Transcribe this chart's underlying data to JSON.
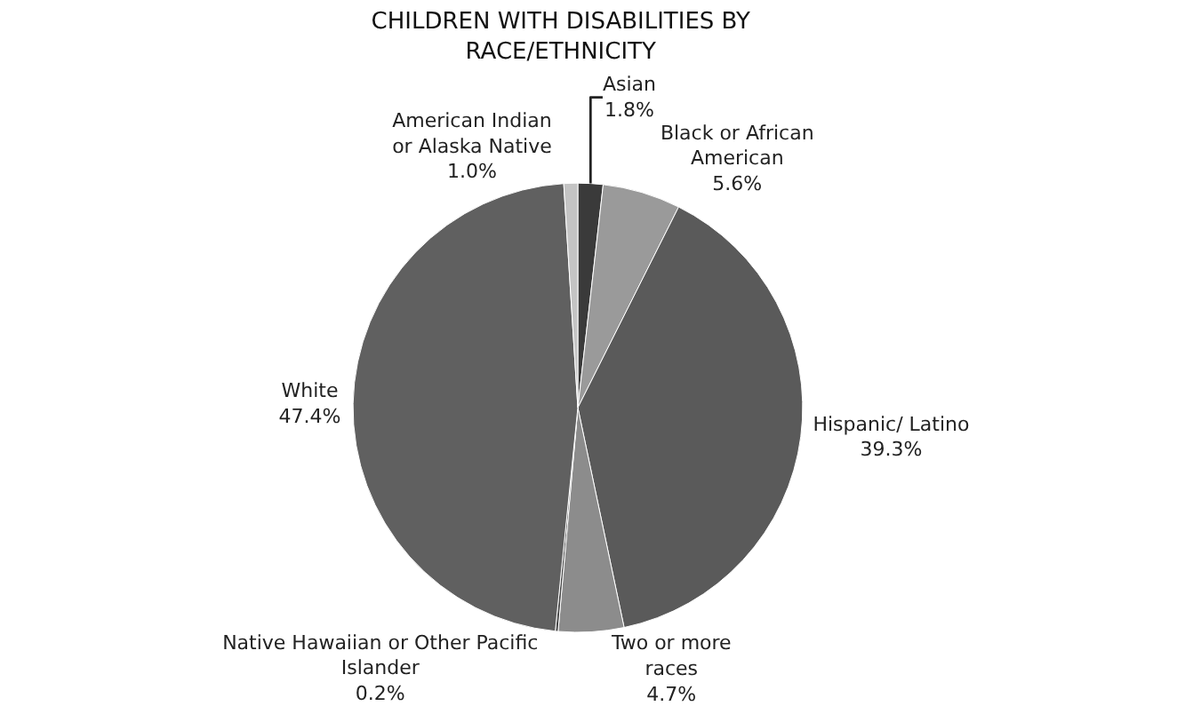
{
  "chart_data": {
    "type": "pie",
    "title": "CHILDREN WITH DISABILITIES BY RACE/ETHNICITY",
    "categories": [
      "Asian",
      "Black or African American",
      "Hispanic/ Latino",
      "Two or more races",
      "Native Hawaiian or Other Pacific Islander",
      "White",
      "American Indian or Alaska Native"
    ],
    "values": [
      1.8,
      5.6,
      39.3,
      4.7,
      0.2,
      47.4,
      1.0
    ],
    "colors": [
      "#3a3a3a",
      "#9a9a9a",
      "#5a5a5a",
      "#8c8c8c",
      "#444444",
      "#606060",
      "#c4c4c4"
    ],
    "value_labels": [
      "1.8%",
      "5.6%",
      "39.3%",
      "4.7%",
      "0.2%",
      "47.4%",
      "1.0%"
    ],
    "legend": false
  }
}
